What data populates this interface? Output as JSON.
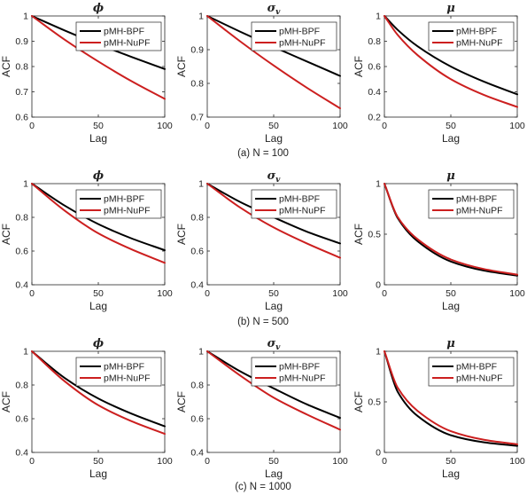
{
  "series_colors": {
    "pMH-BPF": "#000000",
    "pMH-NuPF": "#cc1f1f"
  },
  "panels": [
    {
      "caption": "(a) N = 100"
    },
    {
      "caption": "(b) N = 500"
    },
    {
      "caption": "(c) N = 1000"
    }
  ],
  "chart_data": [
    {
      "type": "line",
      "title": "ϕ",
      "xlabel": "Lag",
      "ylabel": "ACF",
      "xlim": [
        0,
        100
      ],
      "ylim": [
        0.6,
        1
      ],
      "xticks": [
        0,
        50,
        100
      ],
      "yticks": [
        0.6,
        0.7,
        0.8,
        0.9,
        1
      ],
      "yticklabels": [
        "0.6",
        "0.7",
        "0.8",
        "0.9",
        "1"
      ],
      "legend": "top-right",
      "x": [
        0,
        25,
        50,
        75,
        100
      ],
      "series": [
        {
          "name": "pMH-BPF",
          "values": [
            1,
            0.942,
            0.888,
            0.838,
            0.79
          ]
        },
        {
          "name": "pMH-NuPF",
          "values": [
            1,
            0.905,
            0.82,
            0.742,
            0.672
          ]
        }
      ]
    },
    {
      "type": "line",
      "title": "σv",
      "xlabel": "Lag",
      "ylabel": "ACF",
      "xlim": [
        0,
        100
      ],
      "ylim": [
        0.7,
        1
      ],
      "xticks": [
        0,
        50,
        100
      ],
      "yticks": [
        0.7,
        0.8,
        0.9,
        1
      ],
      "yticklabels": [
        "0.7",
        "0.8",
        "0.9",
        "1"
      ],
      "legend": "top-right",
      "x": [
        0,
        25,
        50,
        75,
        100
      ],
      "series": [
        {
          "name": "pMH-BPF",
          "values": [
            1,
            0.953,
            0.908,
            0.865,
            0.822
          ]
        },
        {
          "name": "pMH-NuPF",
          "values": [
            1,
            0.924,
            0.853,
            0.787,
            0.726
          ]
        }
      ]
    },
    {
      "type": "line",
      "title": "μ",
      "xlabel": "Lag",
      "ylabel": "ACF",
      "xlim": [
        0,
        100
      ],
      "ylim": [
        0.2,
        1
      ],
      "xticks": [
        0,
        50,
        100
      ],
      "yticks": [
        0.2,
        0.4,
        0.6,
        0.8,
        1
      ],
      "yticklabels": [
        "0.2",
        "0.4",
        "0.6",
        "0.8",
        "1"
      ],
      "legend": "top-right",
      "x": [
        0,
        10,
        25,
        50,
        75,
        100
      ],
      "series": [
        {
          "name": "pMH-BPF",
          "values": [
            1,
            0.89,
            0.76,
            0.6,
            0.48,
            0.38
          ]
        },
        {
          "name": "pMH-NuPF",
          "values": [
            1,
            0.85,
            0.69,
            0.5,
            0.375,
            0.28
          ]
        }
      ]
    },
    {
      "type": "line",
      "title": "ϕ",
      "xlabel": "Lag",
      "ylabel": "ACF",
      "xlim": [
        0,
        100
      ],
      "ylim": [
        0.4,
        1
      ],
      "xticks": [
        0,
        50,
        100
      ],
      "yticks": [
        0.4,
        0.6,
        0.8,
        1
      ],
      "yticklabels": [
        "0.4",
        "0.6",
        "0.8",
        "1"
      ],
      "legend": "top-right",
      "x": [
        0,
        25,
        50,
        75,
        100
      ],
      "series": [
        {
          "name": "pMH-BPF",
          "values": [
            1,
            0.868,
            0.76,
            0.675,
            0.605
          ]
        },
        {
          "name": "pMH-NuPF",
          "values": [
            1,
            0.838,
            0.705,
            0.61,
            0.53
          ]
        }
      ]
    },
    {
      "type": "line",
      "title": "σv",
      "xlabel": "Lag",
      "ylabel": "ACF",
      "xlim": [
        0,
        100
      ],
      "ylim": [
        0.4,
        1
      ],
      "xticks": [
        0,
        50,
        100
      ],
      "yticks": [
        0.4,
        0.6,
        0.8,
        1
      ],
      "yticklabels": [
        "0.4",
        "0.6",
        "0.8",
        "1"
      ],
      "legend": "top-right",
      "x": [
        0,
        25,
        50,
        75,
        100
      ],
      "series": [
        {
          "name": "pMH-BPF",
          "values": [
            1,
            0.89,
            0.8,
            0.715,
            0.645
          ]
        },
        {
          "name": "pMH-NuPF",
          "values": [
            1,
            0.857,
            0.74,
            0.645,
            0.56
          ]
        }
      ]
    },
    {
      "type": "line",
      "title": "μ",
      "xlabel": "Lag",
      "ylabel": "ACF",
      "xlim": [
        0,
        100
      ],
      "ylim": [
        0,
        1
      ],
      "xticks": [
        0,
        50,
        100
      ],
      "yticks": [
        0,
        0.5,
        1
      ],
      "yticklabels": [
        "0",
        "0.5",
        "1"
      ],
      "legend": "top-right",
      "x": [
        0,
        10,
        25,
        50,
        75,
        100
      ],
      "series": [
        {
          "name": "pMH-BPF",
          "values": [
            1,
            0.66,
            0.43,
            0.23,
            0.14,
            0.09
          ]
        },
        {
          "name": "pMH-NuPF",
          "values": [
            1,
            0.67,
            0.45,
            0.25,
            0.155,
            0.1
          ]
        }
      ]
    },
    {
      "type": "line",
      "title": "ϕ",
      "xlabel": "Lag",
      "ylabel": "ACF",
      "xlim": [
        0,
        100
      ],
      "ylim": [
        0.4,
        1
      ],
      "xticks": [
        0,
        50,
        100
      ],
      "yticks": [
        0.4,
        0.6,
        0.8,
        1
      ],
      "yticklabels": [
        "0.4",
        "0.6",
        "0.8",
        "1"
      ],
      "legend": "top-right",
      "x": [
        0,
        25,
        50,
        75,
        100
      ],
      "series": [
        {
          "name": "pMH-BPF",
          "values": [
            1,
            0.84,
            0.72,
            0.63,
            0.555
          ]
        },
        {
          "name": "pMH-NuPF",
          "values": [
            1,
            0.82,
            0.68,
            0.585,
            0.51
          ]
        }
      ]
    },
    {
      "type": "line",
      "title": "σv",
      "xlabel": "Lag",
      "ylabel": "ACF",
      "xlim": [
        0,
        100
      ],
      "ylim": [
        0.4,
        1
      ],
      "xticks": [
        0,
        50,
        100
      ],
      "yticks": [
        0.4,
        0.6,
        0.8,
        1
      ],
      "yticklabels": [
        "0.4",
        "0.6",
        "0.8",
        "1"
      ],
      "legend": "top-right",
      "x": [
        0,
        25,
        50,
        75,
        100
      ],
      "series": [
        {
          "name": "pMH-BPF",
          "values": [
            1,
            0.88,
            0.78,
            0.685,
            0.605
          ]
        },
        {
          "name": "pMH-NuPF",
          "values": [
            1,
            0.855,
            0.725,
            0.625,
            0.535
          ]
        }
      ]
    },
    {
      "type": "line",
      "title": "μ",
      "xlabel": "Lag",
      "ylabel": "ACF",
      "xlim": [
        0,
        100
      ],
      "ylim": [
        0,
        1
      ],
      "xticks": [
        0,
        50,
        100
      ],
      "yticks": [
        0,
        0.5,
        1
      ],
      "yticklabels": [
        "0",
        "0.5",
        "1"
      ],
      "legend": "top-right",
      "x": [
        0,
        10,
        25,
        50,
        75,
        100
      ],
      "series": [
        {
          "name": "pMH-BPF",
          "values": [
            1,
            0.6,
            0.36,
            0.17,
            0.1,
            0.065
          ]
        },
        {
          "name": "pMH-NuPF",
          "values": [
            1,
            0.64,
            0.41,
            0.21,
            0.125,
            0.08
          ]
        }
      ]
    }
  ]
}
